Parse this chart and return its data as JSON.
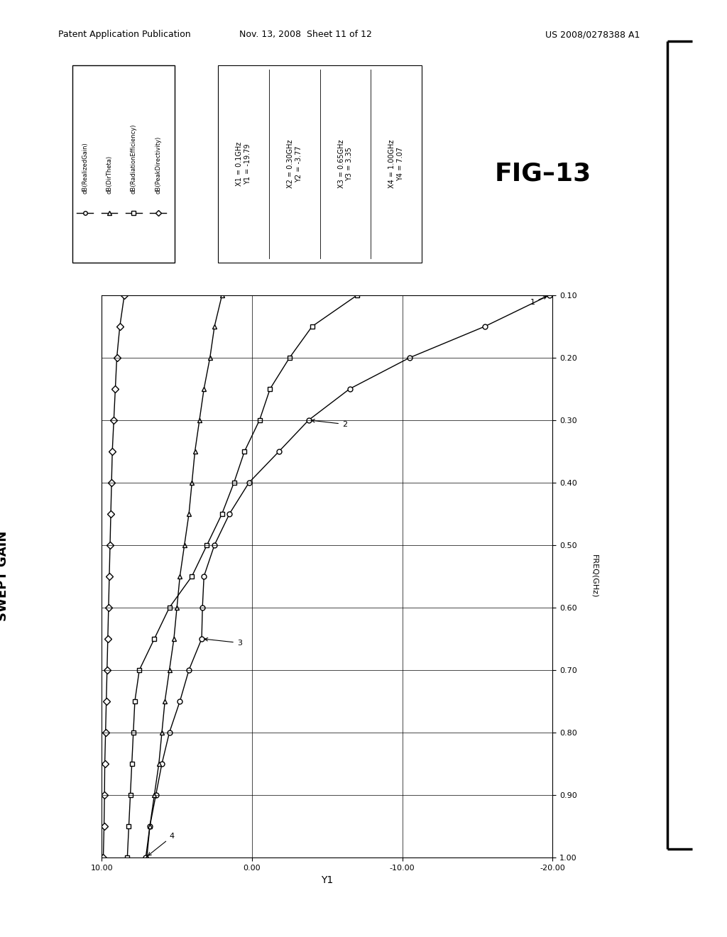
{
  "title": "SWEPT GAIN",
  "xlabel": "Y1",
  "ylabel": "FREQ(GHz)",
  "xlim": [
    10.0,
    -20.0
  ],
  "ylim": [
    1.0,
    0.1
  ],
  "xticks": [
    10.0,
    0.0,
    -10.0,
    -20.0
  ],
  "xtick_labels": [
    "10.00",
    "0.00",
    "-10.00",
    "-20.00"
  ],
  "yticks": [
    1.0,
    0.9,
    0.8,
    0.7,
    0.6,
    0.5,
    0.4,
    0.3,
    0.2,
    0.1
  ],
  "ytick_labels": [
    "1.00",
    "0.90",
    "0.80",
    "0.70",
    "0.60",
    "0.50",
    "0.40",
    "0.30",
    "0.20",
    "0.10"
  ],
  "legend_entries": [
    "dB(RealizedGain)",
    "dB(DirTheta)",
    "dB(RadiationEfficiency)",
    "dB(PeakDirectivity)"
  ],
  "freq": [
    0.1,
    0.15,
    0.2,
    0.25,
    0.3,
    0.35,
    0.4,
    0.45,
    0.5,
    0.55,
    0.6,
    0.65,
    0.7,
    0.75,
    0.8,
    0.85,
    0.9,
    0.95,
    1.0
  ],
  "dB_RealizedGain": [
    -19.79,
    -15.5,
    -10.5,
    -6.5,
    -3.77,
    -1.8,
    0.2,
    1.5,
    2.5,
    3.2,
    3.3,
    3.35,
    4.2,
    4.8,
    5.5,
    6.0,
    6.4,
    6.8,
    7.07
  ],
  "dB_DirTheta": [
    2.0,
    2.5,
    2.8,
    3.2,
    3.5,
    3.8,
    4.0,
    4.2,
    4.5,
    4.8,
    5.0,
    5.2,
    5.5,
    5.8,
    6.0,
    6.2,
    6.5,
    6.8,
    7.0
  ],
  "dB_RadiationEff": [
    -7.0,
    -4.0,
    -2.5,
    -1.2,
    -0.5,
    0.5,
    1.2,
    2.0,
    3.0,
    4.0,
    5.5,
    6.5,
    7.5,
    7.8,
    7.9,
    8.0,
    8.1,
    8.2,
    8.3
  ],
  "dB_PeakDir": [
    8.5,
    8.8,
    9.0,
    9.1,
    9.2,
    9.3,
    9.35,
    9.4,
    9.45,
    9.5,
    9.55,
    9.6,
    9.65,
    9.7,
    9.75,
    9.8,
    9.82,
    9.85,
    9.9
  ],
  "fig_label": "FIG-13",
  "header_left": "Patent Application Publication",
  "header_mid": "Nov. 13, 2008  Sheet 11 of 12",
  "header_right": "US 2008/0278388 A1",
  "annot_cols": [
    "X1 = 0.1GHz\nY1 = -19.79",
    "X2 = 0.30GHz\nY2 = -3.77",
    "X3 = 0.65GHz\nY3 = 3.35",
    "X4 = 1.00GHz\nY4 = 7.07"
  ]
}
